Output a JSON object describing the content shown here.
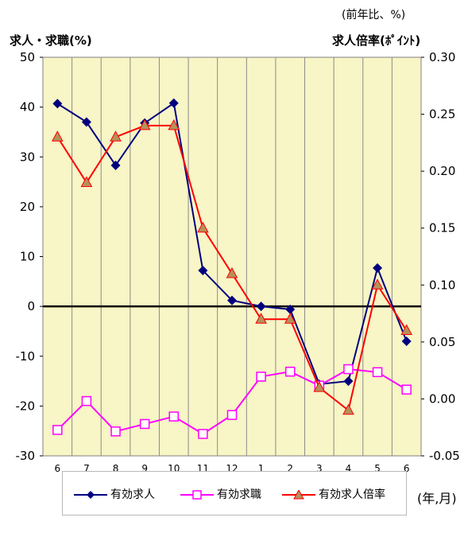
{
  "header": {
    "note": "(前年比、%)",
    "left_axis_title": "求人・求職(%)",
    "right_axis_title": "求人倍率(ﾎﾟｲﾝﾄ)",
    "x_unit": "(年,月)"
  },
  "chart_data": {
    "type": "line",
    "categories": [
      "6",
      "7",
      "8",
      "9",
      "10",
      "11",
      "12",
      "1",
      "2",
      "3",
      "4",
      "5",
      "6"
    ],
    "y_left": {
      "ylim": [
        -30,
        50
      ],
      "ticks": [
        50,
        40,
        30,
        20,
        10,
        0,
        -10,
        -20,
        -30
      ]
    },
    "y_right": {
      "ylim": [
        -0.05,
        0.3
      ],
      "ticks": [
        "0.30",
        "0.25",
        "0.20",
        "0.15",
        "0.10",
        "0.05",
        "0.00",
        "-0.05"
      ]
    },
    "grid": true,
    "background": "#f8f5c6",
    "series": [
      {
        "name": "有効求人",
        "axis": "left",
        "color": "#00007f",
        "marker": "diamond",
        "values": [
          40.7,
          37.0,
          28.3,
          36.8,
          40.8,
          7.2,
          1.2,
          0.0,
          -0.6,
          -15.6,
          -15.0,
          7.7,
          -7.0
        ]
      },
      {
        "name": "有効求職",
        "axis": "left",
        "color": "#ff00ff",
        "marker": "square",
        "values": [
          -24.8,
          -19.0,
          -25.1,
          -23.6,
          -22.1,
          -25.6,
          -21.8,
          -14.1,
          -13.1,
          -15.9,
          -12.6,
          -13.2,
          -16.7
        ]
      },
      {
        "name": "有効求人倍率",
        "axis": "right",
        "color": "#ff0000",
        "marker": "triangle",
        "values": [
          0.23,
          0.19,
          0.23,
          0.24,
          0.24,
          0.15,
          0.11,
          0.07,
          0.07,
          0.01,
          -0.01,
          0.1,
          0.06
        ]
      }
    ]
  }
}
